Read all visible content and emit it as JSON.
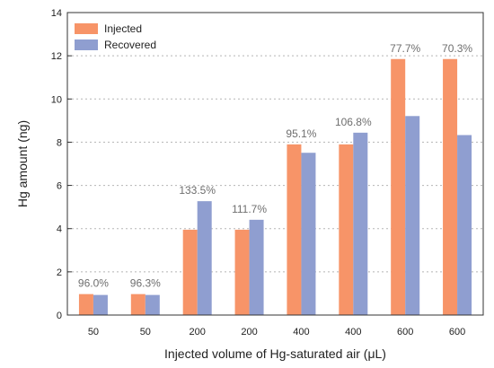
{
  "chart_data": {
    "type": "bar",
    "title": "",
    "xlabel": "Injected volume of Hg-saturated air (μL)",
    "ylabel": "Hg amount (ng)",
    "ylim": [
      0,
      14
    ],
    "yticks": [
      0,
      2,
      4,
      6,
      8,
      10,
      12,
      14
    ],
    "grid": "horizontal-dotted",
    "legend": "top-left",
    "categories": [
      "50",
      "50",
      "200",
      "200",
      "400",
      "400",
      "600",
      "600"
    ],
    "series": [
      {
        "name": "Injected",
        "color": "#f79468",
        "values": [
          0.97,
          0.97,
          3.95,
          3.95,
          7.9,
          7.9,
          11.85,
          11.85
        ]
      },
      {
        "name": "Recovered",
        "color": "#8f9ed0",
        "values": [
          0.93,
          0.93,
          5.27,
          4.41,
          7.51,
          8.44,
          9.21,
          8.33
        ]
      }
    ],
    "annotations": [
      "96.0%",
      "96.3%",
      "133.5%",
      "111.7%",
      "95.1%",
      "106.8%",
      "77.7%",
      "70.3%"
    ]
  }
}
